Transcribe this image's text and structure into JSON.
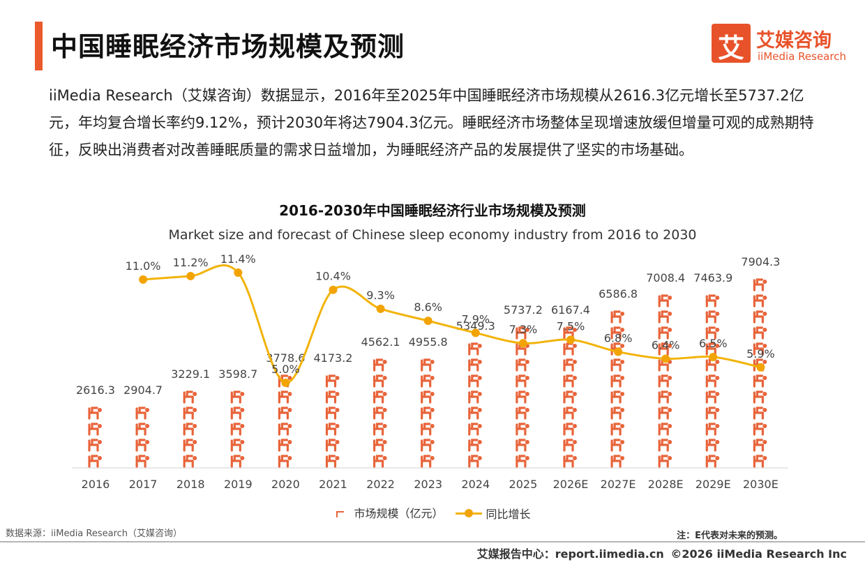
{
  "header": {
    "title": "中国睡眠经济市场规模及预测",
    "brand_logo_glyph": "艾",
    "brand_name_cn": "艾媒咨询",
    "brand_name_en": "iiMedia Research"
  },
  "description": "iiMedia Research（艾媒咨询）数据显示，2016年至2025年中国睡眠经济市场规模从2616.3亿元增长至5737.2亿元，年均复合增长率约9.12%，预计2030年将达7904.3亿元。睡眠经济市场整体呈现增速放缓但增量可观的成熟期特征，反映出消费者对改善睡眠质量的需求日益增加，为睡眠经济产品的发展提供了坚实的市场基础。",
  "chart_data": {
    "type": "bar",
    "title": "2016-2030年中国睡眠经济行业市场规模及预测",
    "subtitle": "Market size and forecast of Chinese sleep economy industry from 2016 to 2030",
    "categories": [
      "2016",
      "2017",
      "2018",
      "2019",
      "2020",
      "2021",
      "2022",
      "2023",
      "2024",
      "2025",
      "2026E",
      "2027E",
      "2028E",
      "2029E",
      "2030E"
    ],
    "series": [
      {
        "name": "市场规模（亿元）",
        "type": "bar",
        "color": "#e8643a",
        "values": [
          2616.3,
          2904.7,
          3229.1,
          3598.7,
          3778.6,
          4173.2,
          4562.1,
          4955.8,
          5349.3,
          5737.2,
          6167.4,
          6586.8,
          7008.4,
          7463.9,
          7904.3
        ],
        "labels": [
          "2616.3",
          "2904.7",
          "3229.1",
          "3598.7",
          "3778.6",
          "4173.2",
          "4562.1",
          "4955.8",
          "5349.3",
          "5737.2",
          "6167.4",
          "6586.8",
          "7008.4",
          "7463.9",
          "7904.3"
        ]
      },
      {
        "name": "同比增长",
        "type": "line",
        "color": "#f2b308",
        "values": [
          null,
          11.0,
          11.2,
          11.4,
          5.0,
          10.4,
          9.3,
          8.6,
          7.9,
          7.3,
          7.5,
          6.8,
          6.4,
          6.5,
          5.9
        ],
        "labels": [
          "",
          "11.0%",
          "11.2%",
          "11.4%",
          "5.0%",
          "10.4%",
          "9.3%",
          "8.6%",
          "7.9%",
          "7.3%",
          "7.5%",
          "6.8%",
          "6.4%",
          "6.5%",
          "5.9%"
        ]
      }
    ],
    "grid": false,
    "legend": "bottom-center"
  },
  "footer": {
    "source": "数据来源：iiMedia Research（艾媒咨询）",
    "note": "注：E代表对未来的预测。",
    "report_center": "艾媒报告中心：report.iimedia.cn",
    "copyright": "©2026  iiMedia Research Inc"
  }
}
